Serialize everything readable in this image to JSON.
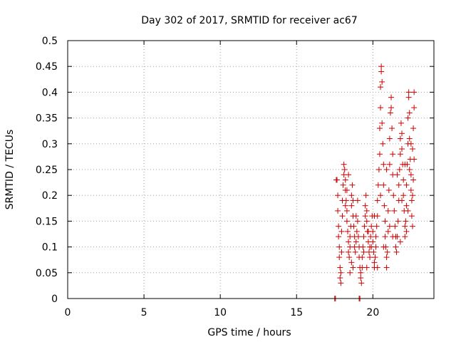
{
  "chart_data": {
    "type": "scatter",
    "title": "Day 302 of 2017, SRMTID for receiver ac67",
    "xlabel": "GPS time / hours",
    "ylabel": "SRMTID / TECUs",
    "xlim": [
      0,
      24
    ],
    "ylim": [
      0,
      0.5
    ],
    "x_ticks": [
      0,
      5,
      10,
      15,
      20
    ],
    "x_tick_labels": [
      "0",
      "5",
      "10",
      "15",
      "20"
    ],
    "y_ticks": [
      0,
      0.05,
      0.1,
      0.15,
      0.2,
      0.25,
      0.3,
      0.35,
      0.4,
      0.45,
      0.5
    ],
    "y_tick_labels": [
      "0",
      "0.05",
      "0.1",
      "0.15",
      "0.2",
      "0.25",
      "0.3",
      "0.35",
      "0.4",
      "0.45",
      "0.5"
    ],
    "grid": true,
    "marker": "+",
    "colors": {
      "points": "#cc0000",
      "grid": "#a0a0a0",
      "axes": "#000000"
    },
    "series": [
      {
        "name": "SRMTID",
        "points": [
          [
            17.5,
            0.0
          ],
          [
            17.55,
            0.0
          ],
          [
            19.1,
            0.0
          ],
          [
            19.15,
            0.0
          ],
          [
            17.6,
            0.23
          ],
          [
            17.65,
            0.23
          ],
          [
            17.7,
            0.2
          ],
          [
            17.7,
            0.17
          ],
          [
            17.75,
            0.14
          ],
          [
            17.75,
            0.12
          ],
          [
            17.8,
            0.1
          ],
          [
            17.8,
            0.08
          ],
          [
            17.85,
            0.06
          ],
          [
            17.85,
            0.04
          ],
          [
            17.9,
            0.03
          ],
          [
            17.9,
            0.05
          ],
          [
            17.95,
            0.09
          ],
          [
            17.95,
            0.13
          ],
          [
            18.0,
            0.16
          ],
          [
            18.0,
            0.19
          ],
          [
            18.05,
            0.22
          ],
          [
            18.1,
            0.24
          ],
          [
            18.1,
            0.26
          ],
          [
            18.15,
            0.25
          ],
          [
            18.2,
            0.23
          ],
          [
            18.2,
            0.21
          ],
          [
            18.25,
            0.19
          ],
          [
            18.3,
            0.17
          ],
          [
            18.3,
            0.15
          ],
          [
            18.35,
            0.13
          ],
          [
            18.4,
            0.11
          ],
          [
            18.4,
            0.09
          ],
          [
            18.45,
            0.08
          ],
          [
            18.5,
            0.1
          ],
          [
            18.5,
            0.12
          ],
          [
            18.55,
            0.14
          ],
          [
            18.6,
            0.18
          ],
          [
            18.6,
            0.2
          ],
          [
            18.65,
            0.22
          ],
          [
            18.7,
            0.19
          ],
          [
            18.7,
            0.16
          ],
          [
            18.75,
            0.14
          ],
          [
            18.8,
            0.12
          ],
          [
            18.8,
            0.1
          ],
          [
            18.85,
            0.09
          ],
          [
            18.9,
            0.11
          ],
          [
            18.95,
            0.13
          ],
          [
            19.0,
            0.15
          ],
          [
            19.05,
            0.12
          ],
          [
            19.1,
            0.1
          ],
          [
            19.1,
            0.08
          ],
          [
            19.15,
            0.06
          ],
          [
            19.2,
            0.05
          ],
          [
            19.2,
            0.04
          ],
          [
            19.25,
            0.03
          ],
          [
            19.3,
            0.06
          ],
          [
            19.3,
            0.08
          ],
          [
            19.35,
            0.1
          ],
          [
            19.4,
            0.12
          ],
          [
            19.45,
            0.14
          ],
          [
            19.5,
            0.16
          ],
          [
            19.5,
            0.18
          ],
          [
            19.55,
            0.2
          ],
          [
            19.6,
            0.17
          ],
          [
            19.6,
            0.15
          ],
          [
            19.65,
            0.13
          ],
          [
            19.7,
            0.11
          ],
          [
            19.75,
            0.09
          ],
          [
            19.8,
            0.08
          ],
          [
            19.8,
            0.1
          ],
          [
            19.85,
            0.12
          ],
          [
            19.9,
            0.14
          ],
          [
            19.95,
            0.16
          ],
          [
            20.0,
            0.13
          ],
          [
            20.0,
            0.11
          ],
          [
            20.05,
            0.09
          ],
          [
            20.1,
            0.07
          ],
          [
            20.1,
            0.06
          ],
          [
            20.15,
            0.08
          ],
          [
            20.2,
            0.1
          ],
          [
            20.2,
            0.12
          ],
          [
            20.25,
            0.14
          ],
          [
            20.3,
            0.16
          ],
          [
            20.3,
            0.19
          ],
          [
            20.35,
            0.22
          ],
          [
            20.4,
            0.25
          ],
          [
            20.45,
            0.28
          ],
          [
            20.45,
            0.33
          ],
          [
            20.5,
            0.37
          ],
          [
            20.5,
            0.41
          ],
          [
            20.55,
            0.44
          ],
          [
            20.55,
            0.45
          ],
          [
            20.6,
            0.42
          ],
          [
            20.6,
            0.34
          ],
          [
            20.65,
            0.3
          ],
          [
            20.7,
            0.26
          ],
          [
            20.7,
            0.22
          ],
          [
            20.75,
            0.18
          ],
          [
            20.8,
            0.15
          ],
          [
            20.8,
            0.12
          ],
          [
            20.85,
            0.1
          ],
          [
            20.9,
            0.08
          ],
          [
            20.9,
            0.06
          ],
          [
            20.95,
            0.09
          ],
          [
            21.0,
            0.13
          ],
          [
            21.0,
            0.17
          ],
          [
            21.05,
            0.21
          ],
          [
            21.1,
            0.26
          ],
          [
            21.1,
            0.31
          ],
          [
            21.15,
            0.36
          ],
          [
            21.2,
            0.39
          ],
          [
            21.2,
            0.37
          ],
          [
            21.25,
            0.33
          ],
          [
            21.3,
            0.28
          ],
          [
            21.3,
            0.24
          ],
          [
            21.35,
            0.2
          ],
          [
            21.4,
            0.17
          ],
          [
            21.45,
            0.14
          ],
          [
            21.5,
            0.12
          ],
          [
            21.5,
            0.1
          ],
          [
            21.55,
            0.09
          ],
          [
            21.6,
            0.12
          ],
          [
            21.65,
            0.15
          ],
          [
            21.7,
            0.19
          ],
          [
            21.7,
            0.22
          ],
          [
            21.75,
            0.25
          ],
          [
            21.8,
            0.28
          ],
          [
            21.8,
            0.31
          ],
          [
            21.85,
            0.34
          ],
          [
            21.9,
            0.32
          ],
          [
            21.9,
            0.29
          ],
          [
            21.95,
            0.26
          ],
          [
            22.0,
            0.23
          ],
          [
            22.0,
            0.2
          ],
          [
            22.05,
            0.17
          ],
          [
            22.1,
            0.14
          ],
          [
            22.1,
            0.12
          ],
          [
            22.15,
            0.15
          ],
          [
            22.2,
            0.18
          ],
          [
            22.2,
            0.22
          ],
          [
            22.25,
            0.26
          ],
          [
            22.3,
            0.3
          ],
          [
            22.3,
            0.35
          ],
          [
            22.35,
            0.39
          ],
          [
            22.35,
            0.4
          ],
          [
            22.4,
            0.36
          ],
          [
            22.4,
            0.31
          ],
          [
            22.45,
            0.27
          ],
          [
            22.5,
            0.24
          ],
          [
            22.5,
            0.21
          ],
          [
            22.55,
            0.19
          ],
          [
            22.55,
            0.16
          ],
          [
            22.6,
            0.14
          ],
          [
            22.6,
            0.29
          ],
          [
            22.65,
            0.33
          ],
          [
            22.7,
            0.37
          ],
          [
            22.7,
            0.4
          ],
          [
            18.2,
            0.18
          ],
          [
            18.3,
            0.21
          ],
          [
            18.4,
            0.24
          ],
          [
            18.5,
            0.05
          ],
          [
            18.6,
            0.07
          ],
          [
            18.7,
            0.06
          ],
          [
            18.9,
            0.16
          ],
          [
            19.0,
            0.19
          ],
          [
            19.4,
            0.09
          ],
          [
            19.6,
            0.06
          ],
          [
            19.7,
            0.13
          ],
          [
            19.9,
            0.1
          ],
          [
            20.1,
            0.16
          ],
          [
            20.3,
            0.06
          ],
          [
            20.5,
            0.2
          ],
          [
            20.7,
            0.1
          ],
          [
            20.9,
            0.25
          ],
          [
            21.1,
            0.14
          ],
          [
            21.3,
            0.12
          ],
          [
            21.6,
            0.24
          ],
          [
            21.8,
            0.11
          ],
          [
            21.9,
            0.19
          ],
          [
            22.1,
            0.26
          ],
          [
            22.2,
            0.13
          ],
          [
            22.3,
            0.17
          ],
          [
            22.4,
            0.25
          ],
          [
            22.5,
            0.3
          ],
          [
            22.6,
            0.2
          ],
          [
            22.65,
            0.23
          ],
          [
            22.7,
            0.27
          ]
        ]
      }
    ]
  }
}
